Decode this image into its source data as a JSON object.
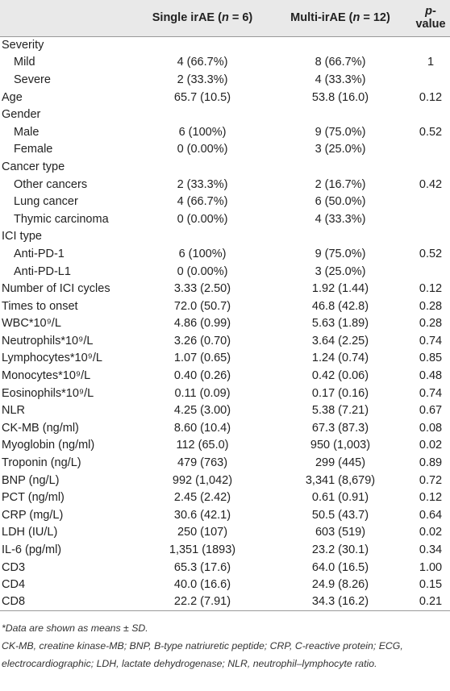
{
  "table": {
    "header": [
      null,
      [
        "Single irAE (",
        "n",
        " = 6)"
      ],
      [
        "Multi-irAE (",
        "n",
        " = 12)"
      ],
      [
        "p",
        "-value"
      ]
    ],
    "rows": [
      {
        "label": "Severity",
        "rows": [
          [
            "Mild",
            "4 (66.7%)",
            "8 (66.7%)",
            "1"
          ],
          [
            "Severe",
            "2 (33.3%)",
            "4 (33.3%)",
            null
          ]
        ]
      },
      [
        "Age",
        "65.7 (10.5)",
        "53.8 (16.0)",
        "0.12"
      ],
      {
        "label": "Gender",
        "rows": [
          [
            "Male",
            "6 (100%)",
            "9 (75.0%)",
            "0.52"
          ],
          [
            "Female",
            "0 (0.00%)",
            "3 (25.0%)",
            null
          ]
        ]
      },
      {
        "label": "Cancer type",
        "rows": [
          [
            "Other cancers",
            "2 (33.3%)",
            "2 (16.7%)",
            "0.42"
          ],
          [
            "Lung cancer",
            "4 (66.7%)",
            "6 (50.0%)",
            null
          ],
          [
            "Thymic carcinoma",
            "0 (0.00%)",
            "4 (33.3%)",
            null
          ]
        ]
      },
      {
        "label": "ICI type",
        "rows": [
          [
            "Anti-PD-1",
            "6 (100%)",
            "9 (75.0%)",
            "0.52"
          ],
          [
            "Anti-PD-L1",
            "0 (0.00%)",
            "3 (25.0%)",
            null
          ]
        ]
      },
      [
        "Number of ICI cycles",
        "3.33 (2.50)",
        "1.92 (1.44)",
        "0.12"
      ],
      [
        "Times to onset",
        "72.0 (50.7)",
        "46.8 (42.8)",
        "0.28"
      ],
      [
        "WBC*10⁹/L",
        "4.86 (0.99)",
        "5.63 (1.89)",
        "0.28"
      ],
      [
        "Neutrophils*10⁹/L",
        "3.26 (0.70)",
        "3.64 (2.25)",
        "0.74"
      ],
      [
        "Lymphocytes*10⁹/L",
        "1.07 (0.65)",
        "1.24 (0.74)",
        "0.85"
      ],
      [
        "Monocytes*10⁹/L",
        "0.40 (0.26)",
        "0.42 (0.06)",
        "0.48"
      ],
      [
        "Eosinophils*10⁹/L",
        "0.11 (0.09)",
        "0.17 (0.16)",
        "0.74"
      ],
      [
        "NLR",
        "4.25 (3.00)",
        "5.38 (7.21)",
        "0.67"
      ],
      [
        "CK-MB (ng/ml)",
        "8.60 (10.4)",
        "67.3 (87.3)",
        "0.08"
      ],
      [
        "Myoglobin (ng/ml)",
        "112 (65.0)",
        "950 (1,003)",
        "0.02"
      ],
      [
        "Troponin (ng/L)",
        "479 (763)",
        "299 (445)",
        "0.89"
      ],
      [
        "BNP (ng/L)",
        "992 (1,042)",
        "3,341 (8,679)",
        "0.72"
      ],
      [
        "PCT (ng/ml)",
        "2.45 (2.42)",
        "0.61 (0.91)",
        "0.12"
      ],
      [
        "CRP (mg/L)",
        "30.6 (42.1)",
        "50.5 (43.7)",
        "0.64"
      ],
      [
        "LDH (IU/L)",
        "250 (107)",
        "603 (519)",
        "0.02"
      ],
      [
        "IL-6 (pg/ml)",
        "1,351 (1893)",
        "23.2 (30.1)",
        "0.34"
      ],
      [
        "CD3",
        "65.3 (17.6)",
        "64.0 (16.5)",
        "1.00"
      ],
      [
        "CD4",
        "40.0 (16.6)",
        "24.9 (8.26)",
        "0.15"
      ],
      [
        "CD8",
        "22.2 (7.91)",
        "34.3 (16.2)",
        "0.21"
      ]
    ]
  },
  "footnotes": [
    "*Data are shown as means ± SD.",
    "CK-MB, creatine kinase-MB; BNP, B-type natriuretic peptide; CRP, C-reactive protein; ECG, electrocardiographic; LDH, lactate dehydrogenase; NLR, neutrophil–lymphocyte ratio."
  ]
}
